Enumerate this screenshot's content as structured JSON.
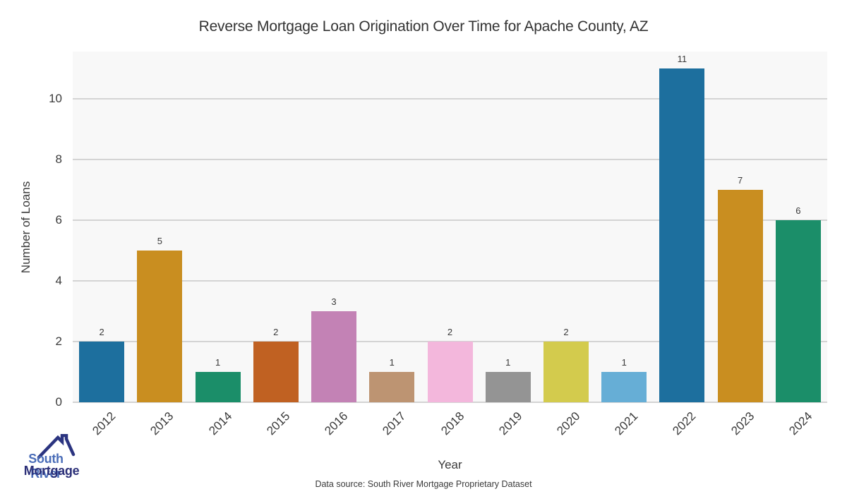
{
  "chart_data": {
    "type": "bar",
    "title": "Reverse Mortgage Loan Origination Over Time for Apache County, AZ",
    "xlabel": "Year",
    "ylabel": "Number of Loans",
    "categories": [
      "2012",
      "2013",
      "2014",
      "2015",
      "2016",
      "2017",
      "2018",
      "2019",
      "2020",
      "2021",
      "2022",
      "2023",
      "2024"
    ],
    "values": [
      2,
      5,
      1,
      2,
      3,
      1,
      2,
      1,
      2,
      1,
      11,
      7,
      6
    ],
    "bar_colors": [
      "#1d6f9e",
      "#c98e20",
      "#1b8e69",
      "#c06122",
      "#c382b5",
      "#bd9472",
      "#f3b7dc",
      "#949494",
      "#d3cb4d",
      "#66aed6",
      "#1d6f9e",
      "#c98e20",
      "#1b8e69"
    ],
    "value_labels": [
      2,
      5,
      1,
      2,
      3,
      1,
      2,
      1,
      2,
      1,
      11,
      7,
      6
    ],
    "ylim": [
      0,
      11.55
    ],
    "yticks": [
      0,
      2,
      4,
      6,
      8,
      10
    ],
    "grid": "horizontal",
    "legend": "none",
    "plot_bg": "#f8f8f8",
    "grid_color": "#d4d4d4"
  },
  "footer": {
    "source_note": "Data source: South River Mortgage Proprietary Dataset"
  },
  "logo": {
    "line1": "South River",
    "line2": "Mortgage",
    "line1_color": "#4a6db8",
    "line2_color": "#2b2f78",
    "roof_icon_color": "#2b3480"
  }
}
